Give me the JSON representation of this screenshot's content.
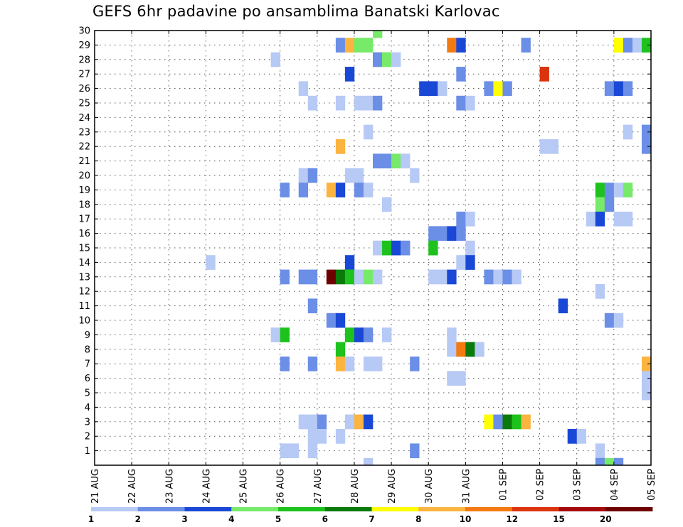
{
  "title": "GEFS 6hr padavine po ansamblima Banatski Karlovac",
  "chart_data": {
    "type": "heatmap",
    "title": "GEFS 6hr padavine po ansamblima Banatski Karlovac",
    "x_axis": {
      "unit": "6-hour step",
      "range": [
        0,
        60
      ],
      "tick_labels": [
        "21 AUG",
        "22 AUG",
        "23 AUG",
        "24 AUG",
        "25 AUG",
        "26 AUG",
        "27 AUG",
        "28 AUG",
        "29 AUG",
        "30 AUG",
        "31 AUG",
        "01 SEP",
        "02 SEP",
        "03 SEP",
        "04 SEP",
        "05 SEP"
      ],
      "tick_positions": [
        0,
        4,
        8,
        12,
        16,
        20,
        24,
        28,
        32,
        36,
        40,
        44,
        48,
        52,
        56,
        60
      ]
    },
    "y_axis": {
      "label": "",
      "range": [
        0,
        30
      ],
      "ticks": [
        1,
        2,
        3,
        4,
        5,
        6,
        7,
        8,
        9,
        10,
        11,
        12,
        13,
        14,
        15,
        16,
        17,
        18,
        19,
        20,
        21,
        22,
        23,
        24,
        25,
        26,
        27,
        28,
        29,
        30
      ]
    },
    "grid": "dotted",
    "colorbar": {
      "position": "bottom",
      "bounds": [
        1,
        2,
        3,
        4,
        5,
        6,
        7,
        8,
        10,
        12,
        15,
        20
      ],
      "labels": [
        "1",
        "2",
        "3",
        "4",
        "5",
        "6",
        "7",
        "8",
        "10",
        "12",
        "15",
        "20"
      ],
      "colors": [
        "#b7c9f5",
        "#6b8ee6",
        "#1a48d6",
        "#77ea6a",
        "#1dc21d",
        "#0a7a0a",
        "#ffff00",
        "#fbb440",
        "#f37a10",
        "#db3510",
        "#a50a0a",
        "#6e0000"
      ]
    },
    "cells": [
      {
        "t": 30,
        "m": 30,
        "c": 4
      },
      {
        "t": 26,
        "m": 29,
        "c": 2
      },
      {
        "t": 27,
        "m": 29,
        "c": 8
      },
      {
        "t": 28,
        "m": 29,
        "c": 4
      },
      {
        "t": 29,
        "m": 29,
        "c": 4
      },
      {
        "t": 38,
        "m": 29,
        "c": 9
      },
      {
        "t": 39,
        "m": 29,
        "c": 3
      },
      {
        "t": 46,
        "m": 29,
        "c": 2
      },
      {
        "t": 56,
        "m": 29,
        "c": 7
      },
      {
        "t": 57,
        "m": 29,
        "c": 2
      },
      {
        "t": 58,
        "m": 29,
        "c": 1
      },
      {
        "t": 59,
        "m": 29,
        "c": 5
      },
      {
        "t": 19,
        "m": 28,
        "c": 1
      },
      {
        "t": 30,
        "m": 28,
        "c": 2
      },
      {
        "t": 31,
        "m": 28,
        "c": 4
      },
      {
        "t": 32,
        "m": 28,
        "c": 1
      },
      {
        "t": 27,
        "m": 27,
        "c": 3
      },
      {
        "t": 39,
        "m": 27,
        "c": 2
      },
      {
        "t": 48,
        "m": 27,
        "c": 10
      },
      {
        "t": 22,
        "m": 26,
        "c": 1
      },
      {
        "t": 35,
        "m": 26,
        "c": 3
      },
      {
        "t": 36,
        "m": 26,
        "c": 3
      },
      {
        "t": 37,
        "m": 26,
        "c": 1
      },
      {
        "t": 42,
        "m": 26,
        "c": 2
      },
      {
        "t": 43,
        "m": 26,
        "c": 7
      },
      {
        "t": 44,
        "m": 26,
        "c": 2
      },
      {
        "t": 55,
        "m": 26,
        "c": 2
      },
      {
        "t": 56,
        "m": 26,
        "c": 3
      },
      {
        "t": 57,
        "m": 26,
        "c": 2
      },
      {
        "t": 23,
        "m": 25,
        "c": 1
      },
      {
        "t": 26,
        "m": 25,
        "c": 1
      },
      {
        "t": 28,
        "m": 25,
        "c": 1
      },
      {
        "t": 29,
        "m": 25,
        "c": 1
      },
      {
        "t": 30,
        "m": 25,
        "c": 2
      },
      {
        "t": 39,
        "m": 25,
        "c": 2
      },
      {
        "t": 40,
        "m": 25,
        "c": 1
      },
      {
        "t": 29,
        "m": 23,
        "c": 1
      },
      {
        "t": 57,
        "m": 23,
        "c": 1
      },
      {
        "t": 59,
        "m": 23,
        "c": 2
      },
      {
        "t": 26,
        "m": 22,
        "c": 8
      },
      {
        "t": 48,
        "m": 22,
        "c": 1
      },
      {
        "t": 49,
        "m": 22,
        "c": 1
      },
      {
        "t": 59,
        "m": 22,
        "c": 2
      },
      {
        "t": 30,
        "m": 21,
        "c": 2
      },
      {
        "t": 31,
        "m": 21,
        "c": 2
      },
      {
        "t": 32,
        "m": 21,
        "c": 4
      },
      {
        "t": 33,
        "m": 21,
        "c": 1
      },
      {
        "t": 22,
        "m": 20,
        "c": 1
      },
      {
        "t": 23,
        "m": 20,
        "c": 2
      },
      {
        "t": 27,
        "m": 20,
        "c": 1
      },
      {
        "t": 28,
        "m": 20,
        "c": 1
      },
      {
        "t": 34,
        "m": 20,
        "c": 1
      },
      {
        "t": 20,
        "m": 19,
        "c": 2
      },
      {
        "t": 22,
        "m": 19,
        "c": 2
      },
      {
        "t": 25,
        "m": 19,
        "c": 8
      },
      {
        "t": 26,
        "m": 19,
        "c": 3
      },
      {
        "t": 28,
        "m": 19,
        "c": 2
      },
      {
        "t": 29,
        "m": 19,
        "c": 1
      },
      {
        "t": 54,
        "m": 19,
        "c": 5
      },
      {
        "t": 55,
        "m": 19,
        "c": 2
      },
      {
        "t": 56,
        "m": 19,
        "c": 1
      },
      {
        "t": 57,
        "m": 19,
        "c": 4
      },
      {
        "t": 31,
        "m": 18,
        "c": 1
      },
      {
        "t": 54,
        "m": 18,
        "c": 4
      },
      {
        "t": 55,
        "m": 18,
        "c": 2
      },
      {
        "t": 39,
        "m": 17,
        "c": 2
      },
      {
        "t": 40,
        "m": 17,
        "c": 1
      },
      {
        "t": 53,
        "m": 17,
        "c": 1
      },
      {
        "t": 54,
        "m": 17,
        "c": 3
      },
      {
        "t": 56,
        "m": 17,
        "c": 1
      },
      {
        "t": 57,
        "m": 17,
        "c": 1
      },
      {
        "t": 36,
        "m": 16,
        "c": 2
      },
      {
        "t": 37,
        "m": 16,
        "c": 2
      },
      {
        "t": 38,
        "m": 16,
        "c": 3
      },
      {
        "t": 39,
        "m": 16,
        "c": 2
      },
      {
        "t": 30,
        "m": 15,
        "c": 1
      },
      {
        "t": 31,
        "m": 15,
        "c": 5
      },
      {
        "t": 32,
        "m": 15,
        "c": 3
      },
      {
        "t": 33,
        "m": 15,
        "c": 2
      },
      {
        "t": 36,
        "m": 15,
        "c": 5
      },
      {
        "t": 40,
        "m": 15,
        "c": 1
      },
      {
        "t": 12,
        "m": 14,
        "c": 1
      },
      {
        "t": 27,
        "m": 14,
        "c": 3
      },
      {
        "t": 39,
        "m": 14,
        "c": 1
      },
      {
        "t": 40,
        "m": 14,
        "c": 3
      },
      {
        "t": 20,
        "m": 13,
        "c": 2
      },
      {
        "t": 22,
        "m": 13,
        "c": 2
      },
      {
        "t": 23,
        "m": 13,
        "c": 2
      },
      {
        "t": 25,
        "m": 13,
        "c": 12
      },
      {
        "t": 26,
        "m": 13,
        "c": 6
      },
      {
        "t": 27,
        "m": 13,
        "c": 5
      },
      {
        "t": 28,
        "m": 13,
        "c": 1
      },
      {
        "t": 29,
        "m": 13,
        "c": 4
      },
      {
        "t": 30,
        "m": 13,
        "c": 1
      },
      {
        "t": 36,
        "m": 13,
        "c": 1
      },
      {
        "t": 37,
        "m": 13,
        "c": 1
      },
      {
        "t": 38,
        "m": 13,
        "c": 3
      },
      {
        "t": 42,
        "m": 13,
        "c": 2
      },
      {
        "t": 43,
        "m": 13,
        "c": 1
      },
      {
        "t": 44,
        "m": 13,
        "c": 2
      },
      {
        "t": 45,
        "m": 13,
        "c": 1
      },
      {
        "t": 54,
        "m": 12,
        "c": 1
      },
      {
        "t": 23,
        "m": 11,
        "c": 2
      },
      {
        "t": 50,
        "m": 11,
        "c": 3
      },
      {
        "t": 25,
        "m": 10,
        "c": 2
      },
      {
        "t": 26,
        "m": 10,
        "c": 3
      },
      {
        "t": 55,
        "m": 10,
        "c": 2
      },
      {
        "t": 56,
        "m": 10,
        "c": 1
      },
      {
        "t": 19,
        "m": 9,
        "c": 1
      },
      {
        "t": 20,
        "m": 9,
        "c": 5
      },
      {
        "t": 27,
        "m": 9,
        "c": 5
      },
      {
        "t": 28,
        "m": 9,
        "c": 3
      },
      {
        "t": 29,
        "m": 9,
        "c": 2
      },
      {
        "t": 31,
        "m": 9,
        "c": 1
      },
      {
        "t": 38,
        "m": 9,
        "c": 1
      },
      {
        "t": 26,
        "m": 8,
        "c": 5
      },
      {
        "t": 38,
        "m": 8,
        "c": 1
      },
      {
        "t": 39,
        "m": 8,
        "c": 9
      },
      {
        "t": 40,
        "m": 8,
        "c": 6
      },
      {
        "t": 41,
        "m": 8,
        "c": 1
      },
      {
        "t": 20,
        "m": 7,
        "c": 2
      },
      {
        "t": 23,
        "m": 7,
        "c": 2
      },
      {
        "t": 26,
        "m": 7,
        "c": 8
      },
      {
        "t": 27,
        "m": 7,
        "c": 1
      },
      {
        "t": 29,
        "m": 7,
        "c": 1
      },
      {
        "t": 30,
        "m": 7,
        "c": 1
      },
      {
        "t": 34,
        "m": 7,
        "c": 2
      },
      {
        "t": 59,
        "m": 7,
        "c": 8
      },
      {
        "t": 38,
        "m": 6,
        "c": 1
      },
      {
        "t": 39,
        "m": 6,
        "c": 1
      },
      {
        "t": 59,
        "m": 6,
        "c": 1
      },
      {
        "t": 59,
        "m": 5,
        "c": 1
      },
      {
        "t": 22,
        "m": 3,
        "c": 1
      },
      {
        "t": 23,
        "m": 3,
        "c": 1
      },
      {
        "t": 24,
        "m": 3,
        "c": 2
      },
      {
        "t": 27,
        "m": 3,
        "c": 1
      },
      {
        "t": 28,
        "m": 3,
        "c": 8
      },
      {
        "t": 29,
        "m": 3,
        "c": 3
      },
      {
        "t": 42,
        "m": 3,
        "c": 7
      },
      {
        "t": 43,
        "m": 3,
        "c": 2
      },
      {
        "t": 44,
        "m": 3,
        "c": 6
      },
      {
        "t": 45,
        "m": 3,
        "c": 5
      },
      {
        "t": 46,
        "m": 3,
        "c": 8
      },
      {
        "t": 23,
        "m": 2,
        "c": 1
      },
      {
        "t": 24,
        "m": 2,
        "c": 1
      },
      {
        "t": 26,
        "m": 2,
        "c": 1
      },
      {
        "t": 51,
        "m": 2,
        "c": 3
      },
      {
        "t": 52,
        "m": 2,
        "c": 1
      },
      {
        "t": 20,
        "m": 1,
        "c": 1
      },
      {
        "t": 21,
        "m": 1,
        "c": 1
      },
      {
        "t": 23,
        "m": 1,
        "c": 1
      },
      {
        "t": 34,
        "m": 1,
        "c": 2
      },
      {
        "t": 54,
        "m": 1,
        "c": 1
      },
      {
        "t": 29,
        "m": 0,
        "c": 1
      },
      {
        "t": 54,
        "m": 0,
        "c": 2
      },
      {
        "t": 55,
        "m": 0,
        "c": 4
      },
      {
        "t": 56,
        "m": 0,
        "c": 2
      }
    ]
  }
}
